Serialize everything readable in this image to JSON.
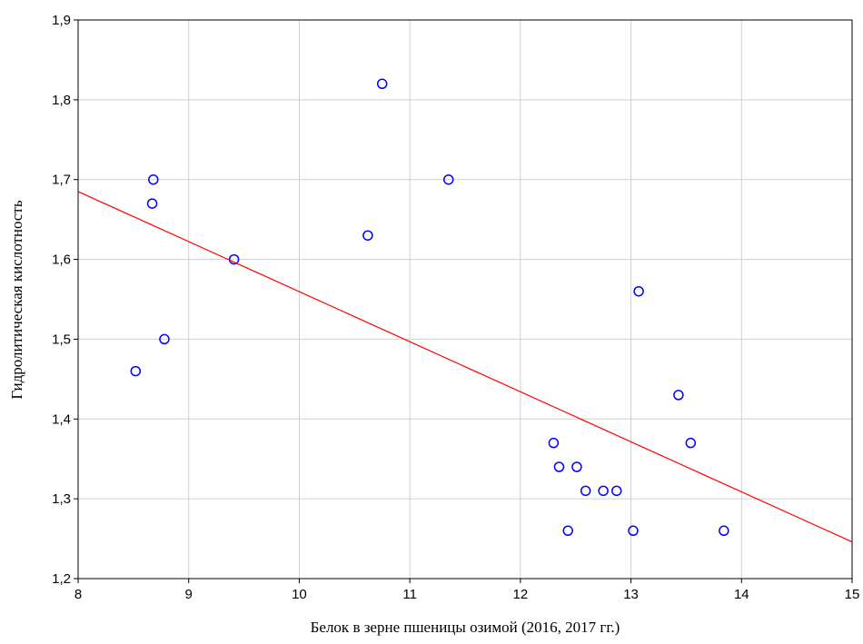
{
  "chart_data": {
    "type": "scatter",
    "x_label": "Белок в зерне пшеницы озимой (2016, 2017 гг.)",
    "y_label": "Гидролитическая кислотность",
    "xlim": [
      8,
      15
    ],
    "ylim": [
      1.2,
      1.9
    ],
    "xticks": [
      8,
      9,
      10,
      11,
      12,
      13,
      14,
      15
    ],
    "yticks": [
      {
        "value": 1.2,
        "label": "1,2"
      },
      {
        "value": 1.3,
        "label": "1,3"
      },
      {
        "value": 1.4,
        "label": "1,4"
      },
      {
        "value": 1.5,
        "label": "1,5"
      },
      {
        "value": 1.6,
        "label": "1,6"
      },
      {
        "value": 1.7,
        "label": "1,7"
      },
      {
        "value": 1.8,
        "label": "1,8"
      },
      {
        "value": 1.9,
        "label": "1,9"
      }
    ],
    "grid": true,
    "series": [
      {
        "type": "scatter",
        "color": "#0000ff",
        "x": [
          8.52,
          8.67,
          8.68,
          8.78,
          9.41,
          10.62,
          10.75,
          11.35,
          12.3,
          12.35,
          12.43,
          12.51,
          12.59,
          12.75,
          12.87,
          13.02,
          13.07,
          13.43,
          13.54,
          13.84
        ],
        "values": [
          1.46,
          1.67,
          1.7,
          1.5,
          1.6,
          1.63,
          1.82,
          1.7,
          1.37,
          1.34,
          1.26,
          1.34,
          1.31,
          1.31,
          1.31,
          1.26,
          1.56,
          1.43,
          1.37,
          1.26
        ]
      },
      {
        "type": "line",
        "color": "#ff0000",
        "x": [
          8,
          15
        ],
        "values": [
          1.685,
          1.246
        ]
      }
    ]
  }
}
